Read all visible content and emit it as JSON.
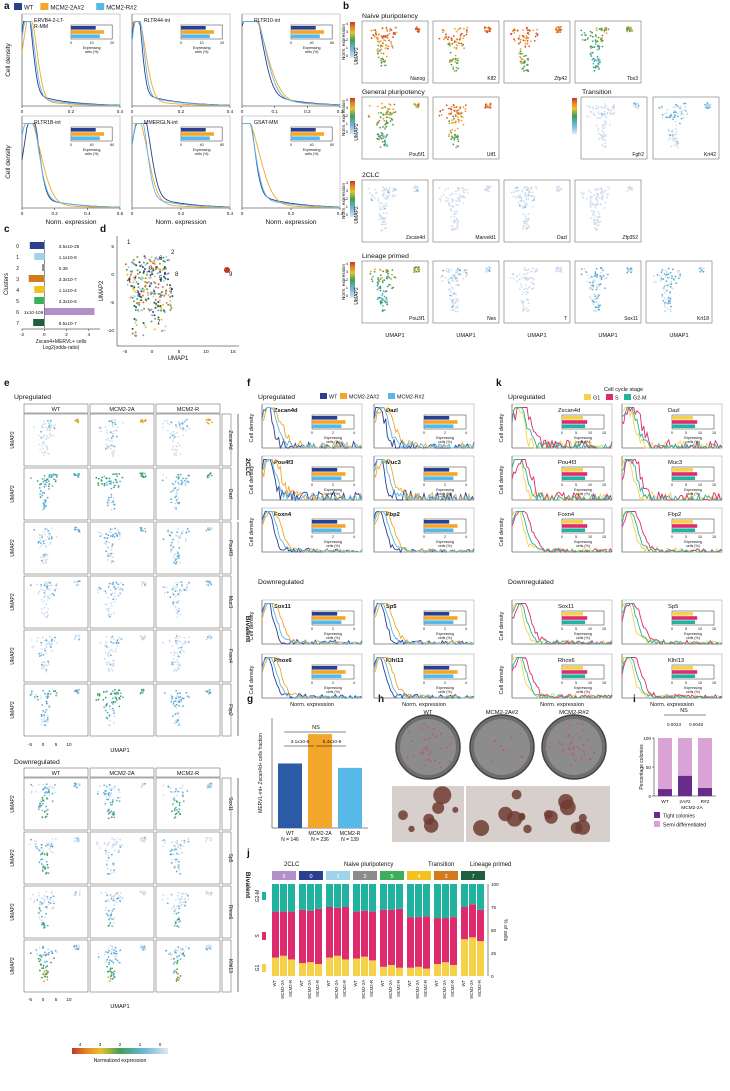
{
  "panel_letters": [
    "a",
    "b",
    "c",
    "d",
    "e",
    "f",
    "g",
    "h",
    "i",
    "j",
    "k"
  ],
  "legend_genotype": {
    "entries": [
      {
        "name": "WT",
        "color": "#2b3f8f"
      },
      {
        "name": "MCM2-2A#2",
        "color": "#f4a62a"
      },
      {
        "name": "MCM2-R#2",
        "color": "#58b8e8"
      }
    ]
  },
  "panel_a": {
    "ylabel": "Cell density",
    "xlabel": "Norm. expression",
    "inset_label": "Expressing cells (%)",
    "plots": [
      {
        "title": "ERVB4-2-LTR-MM",
        "xticks": [
          "0",
          "0.2",
          "0.4"
        ],
        "inset_ticks": [
          "0",
          "10",
          "20"
        ]
      },
      {
        "title": "RLTR44-int",
        "xticks": [
          "0",
          "0.2",
          "0.4"
        ],
        "inset_ticks": [
          "0",
          "10",
          "20"
        ]
      },
      {
        "title": "RLTR10-int",
        "xticks": [
          "0",
          "0.1",
          "0.2",
          "0.3"
        ],
        "inset_ticks": [
          "0",
          "40",
          "80"
        ]
      },
      {
        "title": "RLTR1B-int",
        "xticks": [
          "0",
          "0.2",
          "0.4",
          "0.6"
        ],
        "inset_ticks": [
          "0",
          "40",
          "80"
        ]
      },
      {
        "title": "MMERGLN-int",
        "xticks": [
          "0",
          "0.2",
          "0.4"
        ],
        "inset_ticks": [
          "0",
          "40",
          "80"
        ]
      },
      {
        "title": "GSAT-MM",
        "xticks": [
          "0",
          "0.2",
          "0.4"
        ],
        "inset_ticks": [
          "0",
          "40",
          "80"
        ]
      }
    ]
  },
  "panel_b": {
    "colorbar_label": "Norm. expression",
    "colorbar_ticks": [
      "4",
      "3",
      "2",
      "1",
      "0"
    ],
    "ylabel": "UMAP2",
    "xlabel": "UMAP1",
    "xticks": [
      "-5",
      "0",
      "5",
      "10"
    ],
    "yticks": [
      "0",
      "-5",
      "-10"
    ],
    "groups": [
      {
        "title": "Naive pluripotency",
        "genes": [
          "Nanog",
          "Klf2",
          "Zfp42",
          "Tbx3"
        ]
      },
      {
        "title": "General pluripotency",
        "genes": [
          "Pou5f1",
          "Utf1"
        ]
      },
      {
        "title": "Transition",
        "genes": [
          "Fgfr2",
          "Krt42"
        ]
      },
      {
        "title": "2CLC",
        "genes": [
          "Zscan4d",
          "Marveld1",
          "Dazl",
          "Zfp352"
        ]
      },
      {
        "title": "Lineage primed",
        "genes": [
          "Pou3f1",
          "Nes",
          "T",
          "Sox11",
          "Krt18"
        ]
      }
    ]
  },
  "chart_data": [
    {
      "type": "bar",
      "panel": "c",
      "ylabel": "Clusters",
      "xlabel": "Zscan4+MERVL+ cells Log2(odds-ratio)",
      "xticks": [
        "-2",
        "0",
        "2",
        "4"
      ],
      "categories": [
        "0",
        "1",
        "2",
        "3",
        "4",
        "5",
        "6",
        "7"
      ],
      "values": [
        -1.3,
        -0.9,
        -0.2,
        -1.4,
        -0.9,
        -0.9,
        4.5,
        -1.0
      ],
      "labels": [
        "3.5x10-25",
        "1.1x10-8",
        "0.39",
        "3.3x10-7",
        "1.1x10-4",
        "3.3x10-6",
        "1x10-109",
        "8.5x10-7"
      ],
      "colors": [
        "#2b3f8f",
        "#9fd3ea",
        "#8c8c8c",
        "#d27b1e",
        "#f2c21e",
        "#3fae5a",
        "#b28fc7",
        "#1f5f3f"
      ],
      "xlim": [
        -2,
        5
      ]
    },
    {
      "type": "bar",
      "panel": "g",
      "title": "NS",
      "ylabel": "MERVL-int+ Zscan4d+ cells fraction",
      "categories": [
        "WT",
        "MCM2-2A",
        "MCM2-R"
      ],
      "n_labels": [
        "N = 146",
        "N = 236",
        "N = 139"
      ],
      "values": [
        0.044,
        0.064,
        0.041
      ],
      "pvalues": [
        "3.1x10-5",
        "5.4x10-5"
      ],
      "colors": [
        "#2b5aa6",
        "#f4a62a",
        "#58b8e8"
      ]
    },
    {
      "type": "bar",
      "panel": "i",
      "ylabel": "Percentage colonies",
      "yticks": [
        "0",
        "50",
        "100"
      ],
      "title": "NS",
      "pvalues": [
        "0.0023",
        "0.0048"
      ],
      "categories": [
        "WT",
        "2A#2",
        "R#2"
      ],
      "group_label": "MCM2-2A",
      "series": [
        {
          "name": "Tight colonies",
          "values": [
            12,
            35,
            14
          ],
          "color": "#6a2c8a"
        },
        {
          "name": "Semi differentiated",
          "values": [
            88,
            65,
            86
          ],
          "color": "#d9a3d6"
        }
      ]
    },
    {
      "type": "bar",
      "panel": "j",
      "ylabel": "% of cells",
      "yticks": [
        "0",
        "25",
        "50",
        "75",
        "100"
      ],
      "group_titles": [
        "2CLC",
        "Naive pluripotency",
        "Transition",
        "Lineage primed"
      ],
      "clusters": [
        "6",
        "0",
        "1",
        "2",
        "5",
        "4",
        "3",
        "7"
      ],
      "cluster_colors": [
        "#b28fc7",
        "#2b3f8f",
        "#9fd3ea",
        "#8c8c8c",
        "#3fae5a",
        "#f2c21e",
        "#d27b1e",
        "#1f5f3f"
      ],
      "bar_labels": [
        "WT",
        "MCM2-2A",
        "MCM2-R"
      ],
      "side_labels": [
        "G2-M",
        "S",
        "G1"
      ],
      "series": [
        {
          "name": "G1",
          "color": "#f6d24a",
          "values": [
            20,
            22,
            18,
            14,
            15,
            13,
            20,
            22,
            18,
            19,
            21,
            17,
            10,
            12,
            9,
            9,
            10,
            8,
            13,
            15,
            12,
            40,
            42,
            38
          ]
        },
        {
          "name": "S",
          "color": "#de2b6e",
          "values": [
            50,
            48,
            52,
            58,
            56,
            60,
            55,
            52,
            57,
            51,
            50,
            53,
            62,
            60,
            64,
            55,
            54,
            57,
            50,
            48,
            52,
            35,
            36,
            34
          ]
        },
        {
          "name": "G2-M",
          "color": "#22b3a0",
          "values": [
            30,
            30,
            30,
            28,
            29,
            27,
            25,
            26,
            25,
            30,
            29,
            30,
            28,
            28,
            27,
            36,
            36,
            35,
            37,
            37,
            36,
            25,
            22,
            28
          ]
        }
      ]
    }
  ],
  "panel_d": {
    "xlabel": "UMAP1",
    "ylabel": "UMAP2",
    "xticks": [
      "-5",
      "0",
      "5",
      "10",
      "15"
    ],
    "yticks": [
      "5",
      "0",
      "-5",
      "-10"
    ],
    "cluster_labels": [
      "1",
      "2",
      "6",
      "0",
      "4",
      "5",
      "8",
      "3",
      "9",
      "7"
    ]
  },
  "panel_e": {
    "section_up": "Upregulated",
    "section_down": "Downregulated",
    "columns": [
      "WT",
      "MCM2-2A",
      "MCM2-R"
    ],
    "side_2clc": "2CLC",
    "side_bivalent": "Bivalent",
    "up_genes": [
      "Zscan4d",
      "Dazl",
      "Pou4f3",
      "Muc3",
      "Foxn4",
      "Fbp2"
    ],
    "down_genes": [
      "Sox11",
      "Sp5",
      "Rhox6",
      "Klhl13"
    ],
    "ylabel": "UMAP2",
    "xlabel": "UMAP1",
    "xticks": [
      "-5",
      "0",
      "5",
      "10"
    ],
    "yticks": [
      "0",
      "-5",
      "-10"
    ],
    "colorbar_ticks": [
      "4",
      "3",
      "2",
      "1",
      "0"
    ],
    "colorbar_label": "Normalized expression"
  },
  "panel_f": {
    "section_up": "Upregulated",
    "section_down": "Downregulated",
    "ylabel": "Cell density",
    "xlabel": "Norm. expression",
    "inset_label": "Expressing cells (%)",
    "genes": [
      "Zscan4d",
      "Dazl",
      "Pou4f3",
      "Muc3",
      "Foxn4",
      "Fbp2",
      "Sox11",
      "Sp5",
      "Rhox6",
      "Klhl13"
    ]
  },
  "panel_k": {
    "section_up": "Upregulated",
    "section_down": "Downregulated",
    "legend_title": "Cell cycle stage",
    "legend": [
      {
        "name": "G1",
        "color": "#f6d24a"
      },
      {
        "name": "S",
        "color": "#de2b6e"
      },
      {
        "name": "G2-M",
        "color": "#22b3a0"
      }
    ],
    "ylabel": "Cell density",
    "xlabel": "Norm. expression",
    "inset_label": "Expressing cells (%)",
    "genes": [
      "Zscan4d",
      "Dazl",
      "Pou4f3",
      "Muc3",
      "Foxn4",
      "Fbp2",
      "Sox11",
      "Sp5",
      "Rhox6",
      "Klhl13"
    ]
  },
  "panel_h": {
    "labels": [
      "WT",
      "MCM2-2A#2",
      "MCM2-R#2"
    ]
  }
}
